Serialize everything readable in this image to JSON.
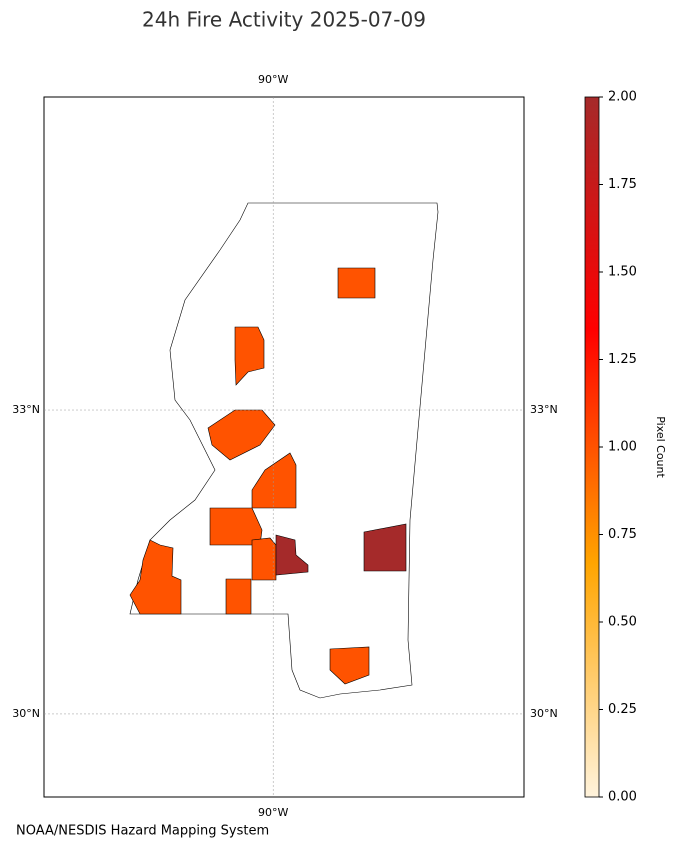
{
  "title": "24h Fire Activity 2025-07-09",
  "map": {
    "lonlim": [
      -92.65,
      -87.1
    ],
    "latlim": [
      29.18,
      36.09
    ],
    "lon_ticks": [
      {
        "value": -90,
        "label": "90°W"
      }
    ],
    "lat_ticks": [
      {
        "value": 33,
        "label": "33°N"
      },
      {
        "value": 30,
        "label": "30°N"
      }
    ],
    "fire_values": [
      1,
      1,
      1,
      1,
      1,
      1,
      1,
      1,
      1,
      2,
      2
    ]
  },
  "colorbar": {
    "label": "Pixel Count",
    "lim": [
      0,
      2
    ],
    "colors": [
      "#fff3dc",
      "#ffa500",
      "#ff0000",
      "#a52a2a"
    ],
    "ticks": [
      {
        "value": 0,
        "label": "0.00"
      },
      {
        "value": 0.25,
        "label": "0.25"
      },
      {
        "value": 0.5,
        "label": "0.50"
      },
      {
        "value": 0.75,
        "label": "0.75"
      },
      {
        "value": 1,
        "label": "1.00"
      },
      {
        "value": 1.25,
        "label": "1.25"
      },
      {
        "value": 1.5,
        "label": "1.50"
      },
      {
        "value": 1.75,
        "label": "1.75"
      },
      {
        "value": 2,
        "label": "2.00"
      }
    ]
  },
  "credit": "NOAA/NESDIS Hazard Mapping System"
}
